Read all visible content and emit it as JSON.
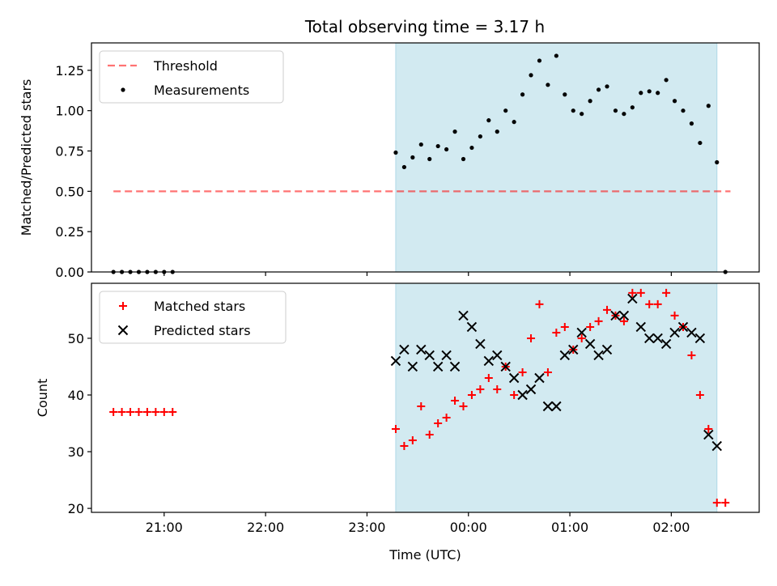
{
  "figure": {
    "title": "Total observing time = 3.17 h"
  },
  "colors": {
    "shade": "#add8e6",
    "threshold": "#ff0000",
    "measurement": "#000000",
    "matched": "#ff0000",
    "predicted": "#000000"
  },
  "chart_data": [
    {
      "type": "scatter",
      "ylabel": "Matched/Predicted stars",
      "xlim": [
        "20:17",
        "02:52"
      ],
      "ylim": [
        0,
        1.42
      ],
      "y_ticks": [
        "0.00",
        "0.25",
        "0.50",
        "0.75",
        "1.00",
        "1.25"
      ],
      "x_ticks": [
        "21:00",
        "22:00",
        "23:00",
        "00:00",
        "01:00",
        "02:00"
      ],
      "x_tick_labels_visible": false,
      "observing_window": {
        "start": "23:17",
        "end": "02:27"
      },
      "legend_position": "upper-left",
      "grid": false,
      "series": [
        {
          "name": "Threshold",
          "kind": "dashed-line",
          "x": [
            "20:30",
            "02:35"
          ],
          "y": [
            0.5,
            0.5
          ]
        },
        {
          "name": "Measurements",
          "kind": "points",
          "x": [
            "20:30",
            "20:35",
            "20:40",
            "20:45",
            "20:50",
            "20:55",
            "21:00",
            "21:05",
            "23:17",
            "23:22",
            "23:27",
            "23:32",
            "23:37",
            "23:42",
            "23:47",
            "23:52",
            "23:57",
            "00:02",
            "00:07",
            "00:12",
            "00:17",
            "00:22",
            "00:27",
            "00:32",
            "00:37",
            "00:42",
            "00:47",
            "00:52",
            "00:57",
            "01:02",
            "01:07",
            "01:12",
            "01:17",
            "01:22",
            "01:27",
            "01:32",
            "01:37",
            "01:42",
            "01:47",
            "01:52",
            "01:57",
            "02:02",
            "02:07",
            "02:12",
            "02:17",
            "02:22",
            "02:27",
            "02:32"
          ],
          "y": [
            0,
            0,
            0,
            0,
            0,
            0,
            0,
            0,
            0.74,
            0.65,
            0.71,
            0.79,
            0.7,
            0.78,
            0.76,
            0.87,
            0.7,
            0.77,
            0.84,
            0.94,
            0.87,
            1.0,
            0.93,
            1.1,
            1.22,
            1.31,
            1.16,
            1.34,
            1.1,
            1.0,
            0.98,
            1.06,
            1.13,
            1.15,
            1.0,
            0.98,
            1.02,
            1.11,
            1.12,
            1.11,
            1.19,
            1.06,
            1.0,
            0.92,
            0.8,
            1.03,
            0.68,
            0
          ]
        }
      ]
    },
    {
      "type": "scatter",
      "xlabel": "Time (UTC)",
      "ylabel": "Count",
      "xlim": [
        "20:17",
        "02:52"
      ],
      "ylim": [
        19.3,
        59.7
      ],
      "y_ticks": [
        "20",
        "30",
        "40",
        "50"
      ],
      "x_ticks": [
        "21:00",
        "22:00",
        "23:00",
        "00:00",
        "01:00",
        "02:00"
      ],
      "observing_window": {
        "start": "23:17",
        "end": "02:27"
      },
      "legend_position": "upper-left",
      "grid": false,
      "series": [
        {
          "name": "Matched stars",
          "marker": "plus",
          "x": [
            "20:30",
            "20:35",
            "20:40",
            "20:45",
            "20:50",
            "20:55",
            "21:00",
            "21:05",
            "23:17",
            "23:22",
            "23:27",
            "23:32",
            "23:37",
            "23:42",
            "23:47",
            "23:52",
            "23:57",
            "00:02",
            "00:07",
            "00:12",
            "00:17",
            "00:22",
            "00:27",
            "00:32",
            "00:37",
            "00:42",
            "00:47",
            "00:52",
            "00:57",
            "01:02",
            "01:07",
            "01:12",
            "01:17",
            "01:22",
            "01:27",
            "01:32",
            "01:37",
            "01:42",
            "01:47",
            "01:52",
            "01:57",
            "02:02",
            "02:07",
            "02:12",
            "02:17",
            "02:22",
            "02:27",
            "02:32"
          ],
          "y": [
            37,
            37,
            37,
            37,
            37,
            37,
            37,
            37,
            34,
            31,
            32,
            38,
            33,
            35,
            36,
            39,
            38,
            40,
            41,
            43,
            41,
            45,
            40,
            44,
            50,
            56,
            44,
            51,
            52,
            48,
            50,
            52,
            53,
            55,
            54,
            53,
            58,
            58,
            56,
            56,
            58,
            54,
            52,
            47,
            40,
            34,
            21,
            21
          ]
        },
        {
          "name": "Predicted stars",
          "marker": "x",
          "x": [
            "23:17",
            "23:22",
            "23:27",
            "23:32",
            "23:37",
            "23:42",
            "23:47",
            "23:52",
            "23:57",
            "00:02",
            "00:07",
            "00:12",
            "00:17",
            "00:22",
            "00:27",
            "00:32",
            "00:37",
            "00:42",
            "00:47",
            "00:52",
            "00:57",
            "01:02",
            "01:07",
            "01:12",
            "01:17",
            "01:22",
            "01:27",
            "01:32",
            "01:37",
            "01:42",
            "01:47",
            "01:52",
            "01:57",
            "02:02",
            "02:07",
            "02:12",
            "02:17",
            "02:22",
            "02:27"
          ],
          "y": [
            46,
            48,
            45,
            48,
            47,
            45,
            47,
            45,
            54,
            52,
            49,
            46,
            47,
            45,
            43,
            40,
            41,
            43,
            38,
            38,
            47,
            48,
            51,
            49,
            47,
            48,
            54,
            54,
            57,
            52,
            50,
            50,
            49,
            51,
            52,
            51,
            50,
            33,
            31
          ]
        }
      ]
    }
  ]
}
